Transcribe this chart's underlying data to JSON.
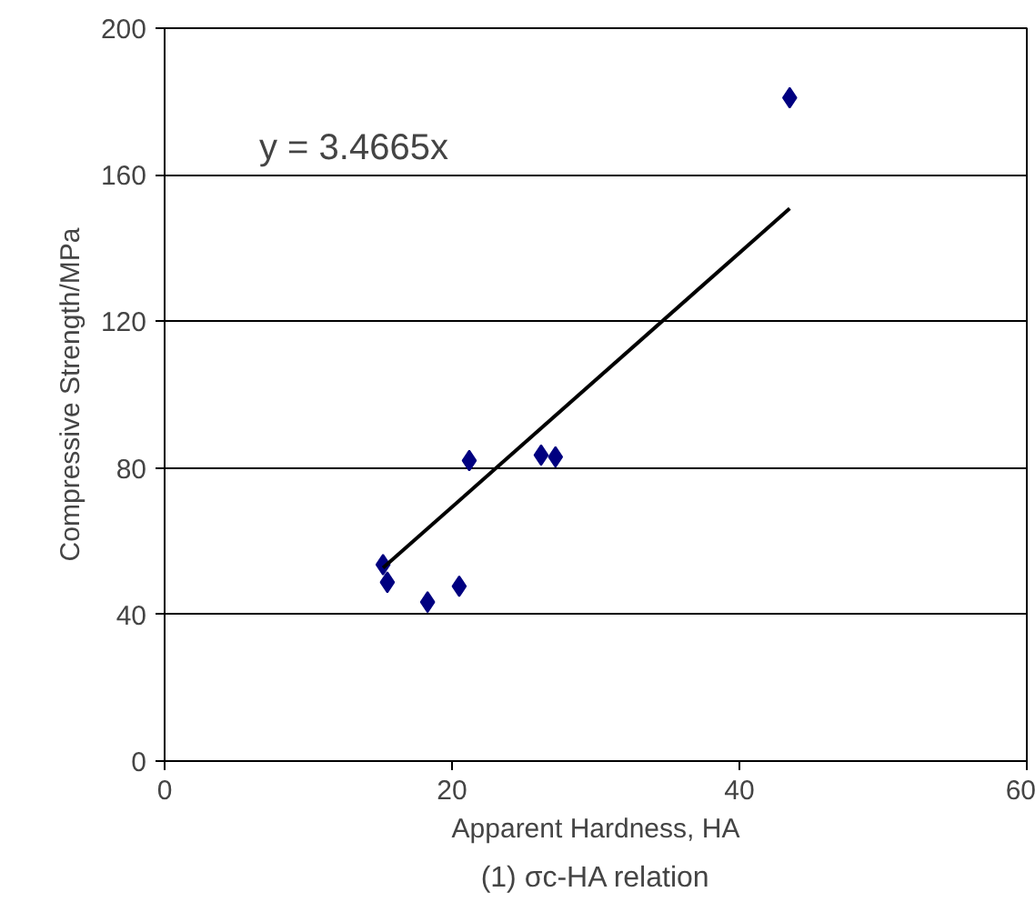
{
  "chart_data": {
    "type": "scatter",
    "xlabel": "Apparent Hardness, HA",
    "ylabel": "Compressive Strength/MPa",
    "x": [
      15.2,
      15.5,
      18.3,
      20.5,
      21.2,
      26.2,
      27.2,
      43.5
    ],
    "series": [
      {
        "color": "#000080",
        "marker": "diamond",
        "values": [
          53.6,
          48.8,
          43.4,
          47.7,
          82,
          83.5,
          83,
          181
        ]
      },
      {
        "type": "line",
        "color": "#000000",
        "marker": "none",
        "line_style": "solid",
        "x": [
          15.2,
          43.5
        ],
        "values": [
          52.7,
          150.8
        ]
      }
    ],
    "annotations": [
      "y = 3.4665x",
      "(1) σc-HA relation"
    ],
    "xlim": [
      0,
      60
    ],
    "ylim": [
      0,
      200
    ],
    "xticks": [
      0,
      20,
      40,
      60
    ],
    "yticks": [
      0,
      40,
      80,
      120,
      160,
      200
    ],
    "grid": "y"
  }
}
